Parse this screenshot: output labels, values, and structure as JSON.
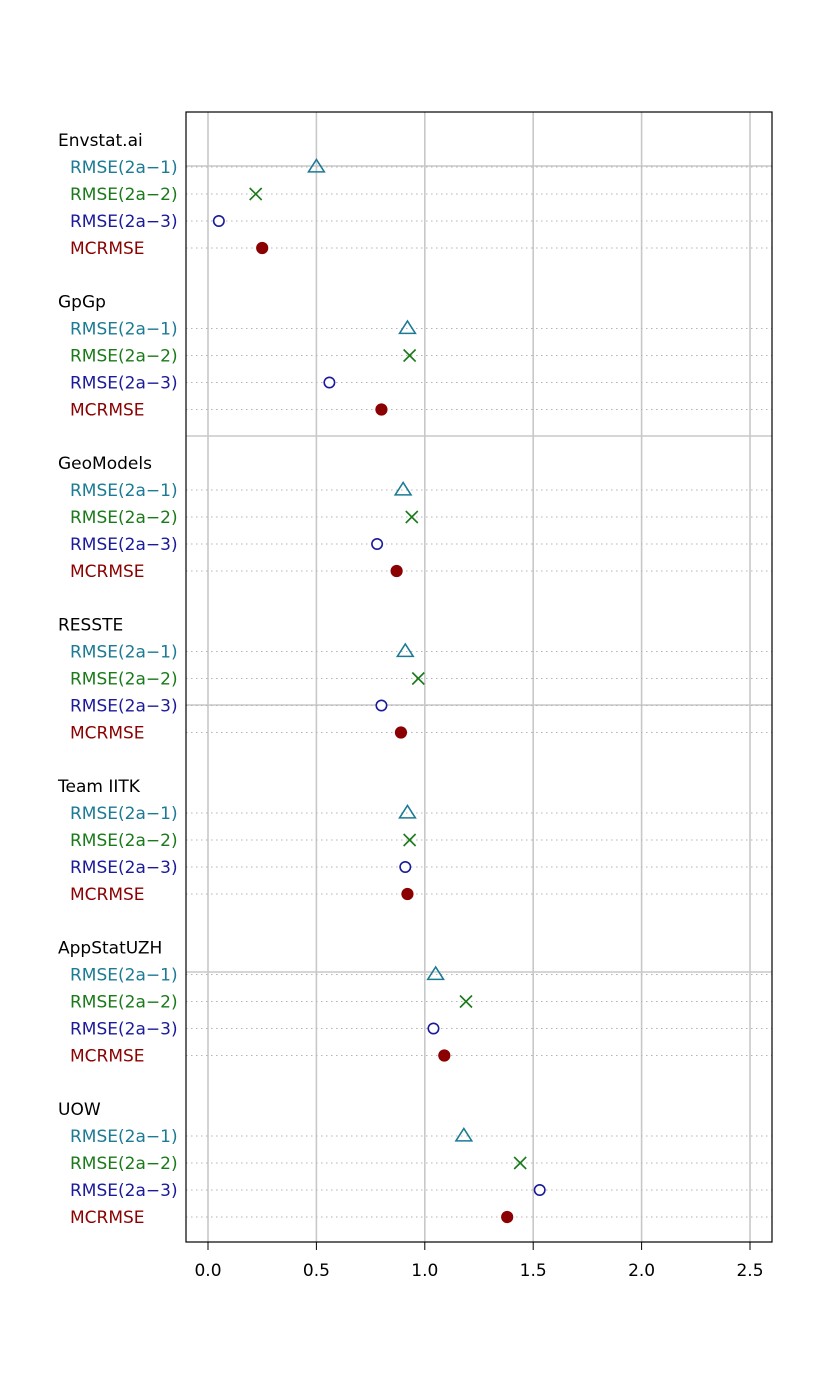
{
  "chart_data": {
    "type": "dotplot",
    "title": "",
    "xlabel": "",
    "ylabel": "",
    "xlim": [
      -0.1,
      2.6
    ],
    "x_ticks": [
      "0.0",
      "0.5",
      "1.0",
      "1.5",
      "2.0",
      "2.5"
    ],
    "grid": true,
    "metrics": [
      {
        "label": "RMSE(2a−1)",
        "marker": "triangle",
        "color": "#1b7a94"
      },
      {
        "label": "RMSE(2a−2)",
        "marker": "cross",
        "color": "#1a7a1a"
      },
      {
        "label": "RMSE(2a−3)",
        "marker": "circle",
        "color": "#1a1a9a"
      },
      {
        "label": "MCRMSE",
        "marker": "filled-circle",
        "color": "#8b0000"
      }
    ],
    "groups": [
      {
        "name": "Envstat.ai",
        "values": [
          0.5,
          0.22,
          0.05,
          0.25
        ]
      },
      {
        "name": "GpGp",
        "values": [
          0.92,
          0.93,
          0.56,
          0.8
        ]
      },
      {
        "name": "GeoModels",
        "values": [
          0.9,
          0.94,
          0.78,
          0.87
        ]
      },
      {
        "name": "RESSTE",
        "values": [
          0.91,
          0.97,
          0.8,
          0.89
        ]
      },
      {
        "name": "Team IITK",
        "values": [
          0.92,
          0.93,
          0.91,
          0.92
        ]
      },
      {
        "name": "AppStatUZH",
        "values": [
          1.05,
          1.19,
          1.04,
          1.09
        ]
      },
      {
        "name": "UOW",
        "values": [
          1.18,
          1.44,
          1.53,
          1.38
        ]
      }
    ]
  }
}
